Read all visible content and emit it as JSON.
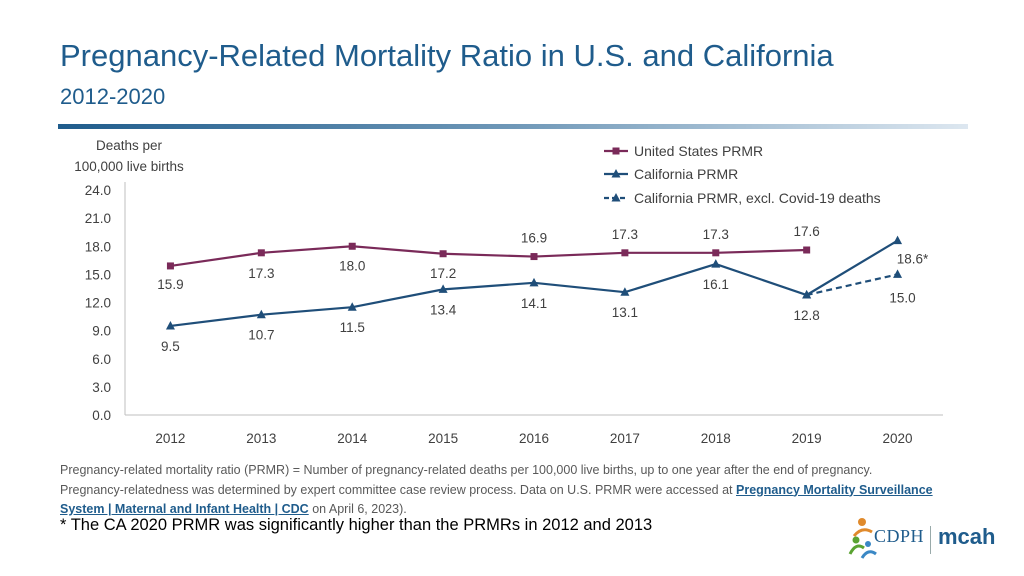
{
  "header": {
    "title": "Pregnancy-Related Mortality Ratio in U.S. and California",
    "subtitle": "2012-2020"
  },
  "colors": {
    "us": "#7a2a59",
    "ca": "#1f4e79",
    "title": "#1f5c8c"
  },
  "chart_data": {
    "type": "line",
    "ylabel_line1": "Deaths per",
    "ylabel_line2": "100,000 live births",
    "ylim": [
      0,
      24
    ],
    "yticks": [
      "0.0",
      "3.0",
      "6.0",
      "9.0",
      "12.0",
      "15.0",
      "18.0",
      "21.0",
      "24.0"
    ],
    "categories": [
      "2012",
      "2013",
      "2014",
      "2015",
      "2016",
      "2017",
      "2018",
      "2019",
      "2020"
    ],
    "grid": false,
    "legend_position": "top-right",
    "series": [
      {
        "key": "us",
        "name": "United States PRMR",
        "marker": "square",
        "style": "solid",
        "x": [
          "2012",
          "2013",
          "2014",
          "2015",
          "2016",
          "2017",
          "2018",
          "2019"
        ],
        "values": [
          15.9,
          17.3,
          18.0,
          17.2,
          16.9,
          17.3,
          17.3,
          17.6
        ],
        "labels": [
          "15.9",
          "17.3",
          "18.0",
          "17.2",
          "16.9",
          "17.3",
          "17.3",
          "17.6"
        ]
      },
      {
        "key": "ca",
        "name": "California PRMR",
        "marker": "triangle",
        "style": "solid",
        "x": [
          "2012",
          "2013",
          "2014",
          "2015",
          "2016",
          "2017",
          "2018",
          "2019",
          "2020"
        ],
        "values": [
          9.5,
          10.7,
          11.5,
          13.4,
          14.1,
          13.1,
          16.1,
          12.8,
          18.6
        ],
        "labels": [
          "9.5",
          "10.7",
          "11.5",
          "13.4",
          "14.1",
          "13.1",
          "16.1",
          "12.8",
          "18.6*"
        ]
      },
      {
        "key": "ca_excl",
        "name": "California PRMR, excl. Covid-19 deaths",
        "marker": "triangle",
        "style": "dashed",
        "x": [
          "2019",
          "2020"
        ],
        "values": [
          12.8,
          15.0
        ],
        "labels": [
          "",
          "15.0"
        ]
      }
    ]
  },
  "footnote": {
    "line1": "Pregnancy-related mortality ratio (PRMR) = Number of pregnancy-related deaths per 100,000 live births, up to one year after the end of pregnancy.",
    "line2_pre": "Pregnancy-relatedness was determined by expert committee case review process. Data on U.S. PRMR were accessed at ",
    "link_text": "Pregnancy Mortality Surveillance System | Maternal and Infant Health | CDC",
    "line3_post": " on April 6, 2023).",
    "asterisk": "* The CA 2020 PRMR was significantly higher than the PRMRs in 2012 and 2013"
  },
  "logo": {
    "cdph": "CDPH",
    "mcah": "mcah"
  }
}
